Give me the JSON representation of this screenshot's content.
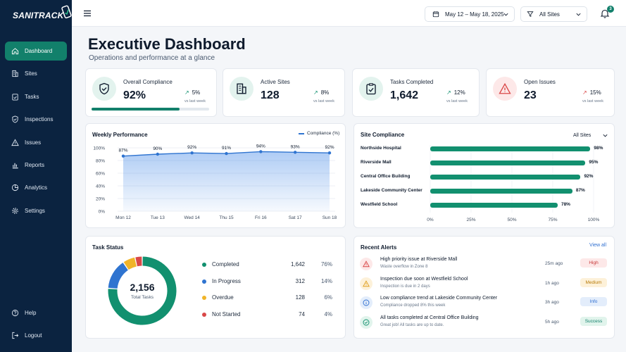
{
  "app": {
    "logo": "SANITRACK"
  },
  "sidebar": {
    "items": [
      {
        "label": "Dashboard",
        "icon": "home-icon"
      },
      {
        "label": "Sites",
        "icon": "building-icon"
      },
      {
        "label": "Tasks",
        "icon": "clipboard-check-icon"
      },
      {
        "label": "Inspections",
        "icon": "shield-check-icon"
      },
      {
        "label": "Issues",
        "icon": "warning-icon"
      },
      {
        "label": "Reports",
        "icon": "bar-chart-icon"
      },
      {
        "label": "Analytics",
        "icon": "pie-chart-icon"
      },
      {
        "label": "Settings",
        "icon": "gear-icon"
      }
    ],
    "bottom": [
      {
        "label": "Help",
        "icon": "help-icon"
      },
      {
        "label": "Logout",
        "icon": "logout-icon"
      }
    ]
  },
  "topbar": {
    "date_range": "May 12 – May 18, 2025",
    "site_filter": "All Sites",
    "notification_count": "3"
  },
  "page": {
    "title": "Executive Dashboard",
    "subtitle": "Operations and performance at a glance"
  },
  "kpis": [
    {
      "label": "Overall Compliance",
      "value": "92%",
      "delta": "5%",
      "vs": "vs last week",
      "icon": "shield-check-icon",
      "progress": 0.75
    },
    {
      "label": "Active Sites",
      "value": "128",
      "delta": "8%",
      "vs": "vs last week",
      "icon": "building-icon"
    },
    {
      "label": "Tasks Completed",
      "value": "1,642",
      "delta": "12%",
      "vs": "vs last week",
      "icon": "clipboard-check-icon"
    },
    {
      "label": "Open Issues",
      "value": "23",
      "delta": "15%",
      "vs": "vs last week",
      "icon": "warning-icon"
    }
  ],
  "weekly": {
    "title": "Weekly Performance",
    "legend": "Compliance (%)",
    "y_ticks": [
      "100%",
      "80%",
      "60%",
      "40%",
      "20%",
      "0%"
    ]
  },
  "site_compliance": {
    "title": "Site Compliance",
    "dropdown": "All Sites",
    "x_ticks": [
      "0%",
      "25%",
      "50%",
      "75%",
      "100%"
    ]
  },
  "task_status": {
    "title": "Task Status",
    "total_value": "2,156",
    "total_label": "Total Tasks",
    "rows": [
      {
        "name": "Completed",
        "count": "1,642",
        "pct": "76%",
        "color": "#12906f"
      },
      {
        "name": "In Progress",
        "count": "312",
        "pct": "14%",
        "color": "#2f74d0"
      },
      {
        "name": "Overdue",
        "count": "128",
        "pct": "6%",
        "color": "#f0b429"
      },
      {
        "name": "Not Started",
        "count": "74",
        "pct": "4%",
        "color": "#d94848"
      }
    ]
  },
  "alerts": {
    "title": "Recent Alerts",
    "view_all": "View all",
    "items": [
      {
        "title": "High priority issue at Riverside Mall",
        "sub": "Waste overflow in Zone 8",
        "time": "25m ago",
        "badge": "High",
        "kind": "high"
      },
      {
        "title": "Inspection due soon at Westfield School",
        "sub": "Inspection is due in 2 days",
        "time": "1h ago",
        "badge": "Medium",
        "kind": "medium"
      },
      {
        "title": "Low compliance trend at Lakeside Community Center",
        "sub": "Compliance dropped 8% this week",
        "time": "3h ago",
        "badge": "Info",
        "kind": "info"
      },
      {
        "title": "All tasks completed at Central Office Building",
        "sub": "Great job! All tasks are up to date.",
        "time": "5h ago",
        "badge": "Success",
        "kind": "success"
      }
    ]
  },
  "chart_data": [
    {
      "type": "area",
      "title": "Weekly Performance",
      "categories": [
        "Mon 12",
        "Tue 13",
        "Wed 14",
        "Thu 15",
        "Fri 16",
        "Sat 17",
        "Sun 18"
      ],
      "series": [
        {
          "name": "Compliance (%)",
          "values": [
            87,
            90,
            92,
            91,
            94,
            93,
            92
          ]
        }
      ],
      "data_labels": [
        "87%",
        "90%",
        "92%",
        "91%",
        "94%",
        "93%",
        "92%"
      ],
      "ylim": [
        0,
        100
      ],
      "grid": true,
      "legend": "top-right"
    },
    {
      "type": "bar",
      "orientation": "horizontal",
      "title": "Site Compliance",
      "categories": [
        "Northside Hospital",
        "Riverside Mall",
        "Central Office Building",
        "Lakeside Community Center",
        "Westfield School"
      ],
      "values": [
        98,
        95,
        92,
        87,
        78
      ],
      "data_labels": [
        "98%",
        "95%",
        "92%",
        "87%",
        "78%"
      ],
      "xlim": [
        0,
        100
      ],
      "grid": true
    },
    {
      "type": "pie",
      "variant": "donut",
      "title": "Task Status",
      "categories": [
        "Completed",
        "In Progress",
        "Overdue",
        "Not Started"
      ],
      "values": [
        1642,
        312,
        128,
        74
      ],
      "colors": [
        "#12906f",
        "#2f74d0",
        "#f0b429",
        "#d94848"
      ]
    }
  ]
}
